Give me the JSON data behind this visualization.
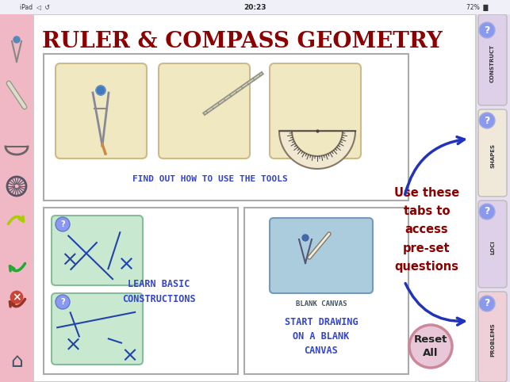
{
  "bg_color": "#f5b8c4",
  "main_panel_bg": "#ffffff",
  "title_text": "RULER & COMPASS GEOMETRY",
  "title_color": "#8b0000",
  "title_fontsize": 20,
  "tool_box_color": "#f0e8c0",
  "tools_label": "FIND OUT HOW TO USE THE TOOLS",
  "tools_label_color": "#3344cc",
  "construct_bg": "#c8e8d0",
  "learn_label": "LEARN BASIC\nCONSTRUCTIONS",
  "learn_label_color": "#3344cc",
  "blank_canvas_box_color": "#aaccdd",
  "blank_canvas_label": "BLANK CANVAS",
  "blank_canvas_label_color": "#445566",
  "start_label": "START DRAWING\nON A BLANK\nCANVAS",
  "start_label_color": "#3344cc",
  "sidebar_tab_colors": [
    "#ddd0e8",
    "#f0e8d8",
    "#ddd0e8",
    "#f0d0d8"
  ],
  "sidebar_tab_texts": [
    "CONSTRUCT",
    "SHAPES",
    "LOCI",
    "PROBLEMS"
  ],
  "use_these_text": "Use these\ntabs to\naccess\npre-set\nquestions",
  "use_these_color": "#8b0000",
  "reset_btn_color": "#e8c8d8",
  "reset_btn_border": "#cc8899",
  "reset_text": "Reset\nAll",
  "reset_text_color": "#222222",
  "left_sidebar_bg": "#f0b8c4",
  "arrow_color": "#2233bb",
  "qmark_bg": "#8899ee",
  "qmark_color": "#ffffff",
  "panel_border": "#aaaaaa"
}
